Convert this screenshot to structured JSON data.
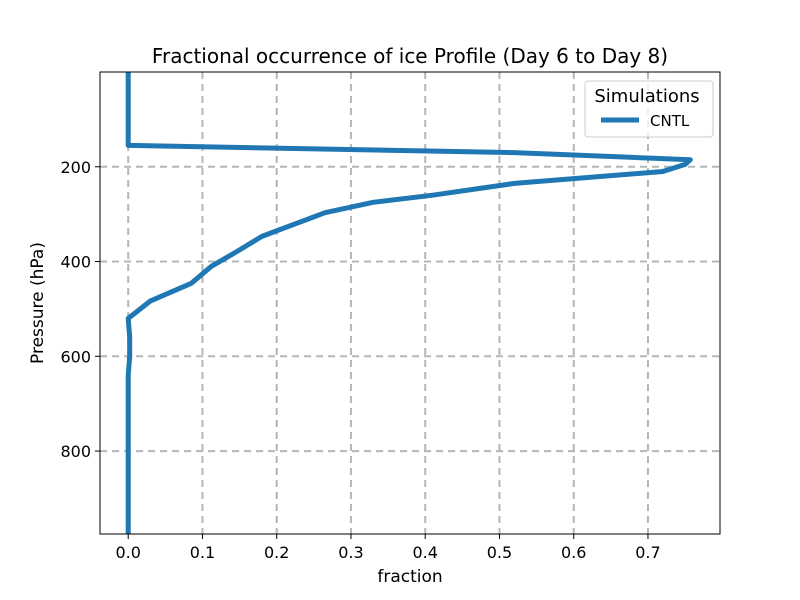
{
  "chart_data": {
    "type": "line",
    "title": "Fractional occurrence of ice Profile (Day 6 to Day 8)",
    "xlabel": "fraction",
    "ylabel": "Pressure (hPa)",
    "xlim": [
      -0.038,
      0.797
    ],
    "ylim": [
      975,
      0
    ],
    "y_inverted": true,
    "grid": true,
    "xticks": [
      "0.0",
      "0.1",
      "0.2",
      "0.3",
      "0.4",
      "0.5",
      "0.6",
      "0.7"
    ],
    "xtick_values": [
      0,
      0.1,
      0.2,
      0.3,
      0.4,
      0.5,
      0.6,
      0.7
    ],
    "yticks": [
      "200",
      "400",
      "600",
      "800"
    ],
    "ytick_values": [
      200,
      400,
      600,
      800
    ],
    "legend": {
      "title": "Simulations",
      "position": "top-right"
    },
    "series": [
      {
        "name": "CNTL",
        "color": "#1f77b4",
        "x": [
          0.0,
          0.0,
          0.0,
          0.0,
          0.52,
          0.757,
          0.75,
          0.72,
          0.52,
          0.41,
          0.33,
          0.265,
          0.18,
          0.145,
          0.112,
          0.085,
          0.03,
          0.0,
          0.002,
          0.002,
          0.0,
          0.0,
          0.0,
          0.0
        ],
        "y": [
          0,
          100,
          150,
          155,
          170,
          185,
          195,
          210,
          235,
          260,
          275,
          297,
          347,
          380,
          410,
          446,
          483,
          520,
          560,
          600,
          640,
          800,
          900,
          975
        ]
      }
    ]
  }
}
